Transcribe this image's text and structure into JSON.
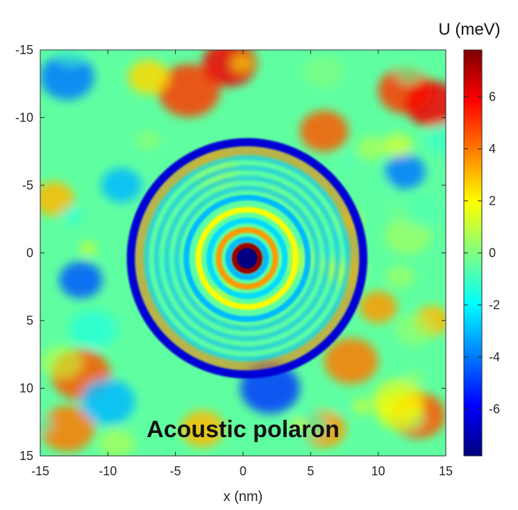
{
  "chart_data": {
    "type": "heatmap",
    "title": "",
    "xlabel": "x (nm)",
    "ylabel": "",
    "annotation": "Acoustic polaron",
    "xlim": [
      -15,
      15
    ],
    "ylim": [
      -15,
      15
    ],
    "y_axis_direction": "down",
    "x_ticks": [
      "-15",
      "-10",
      "-5",
      "0",
      "5",
      "10",
      "15"
    ],
    "y_ticks": [
      "-15",
      "-10",
      "-5",
      "0",
      "5",
      "10",
      "15"
    ],
    "colorbar": {
      "label": "U (meV)",
      "range": [
        -7.8,
        7.8
      ],
      "ticks": [
        "6",
        "4",
        "2",
        "0",
        "-2",
        "-4",
        "-6"
      ],
      "colormap": "jet"
    },
    "features": {
      "center": [
        0.3,
        0.4
      ],
      "center_value": -8,
      "inner_rings": [
        {
          "radius": 0.8,
          "value": 7
        },
        {
          "radius": 1.4,
          "value": -3
        },
        {
          "radius": 2.1,
          "value": 3.5
        },
        {
          "radius": 2.8,
          "value": -2.5
        },
        {
          "radius": 3.6,
          "value": 2
        },
        {
          "radius": 4.5,
          "value": -3
        }
      ],
      "outer_ring": {
        "radius": 8.6,
        "value": -6.5,
        "inner_edge_value": 4
      },
      "background_value": -0.5
    },
    "colors": {
      "dark_red": "#800000",
      "red": "#ff0000",
      "orange": "#ff8000",
      "yellow": "#ffff00",
      "green": "#80ff80",
      "cyan": "#00ffff",
      "blue": "#0000ff",
      "navy": "#000080"
    }
  }
}
